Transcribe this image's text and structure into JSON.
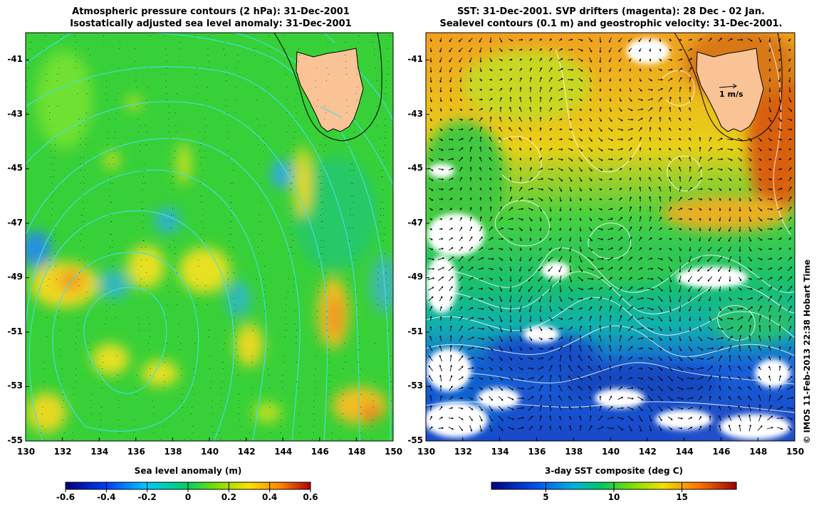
{
  "left_panel": {
    "title_line1": "Atmospheric pressure contours (2 hPa): 31-Dec-2001",
    "title_line2": "Isostatically adjusted sea level anomaly: 31-Dec-2001",
    "colorbar_title": "Sea level anomaly (m)",
    "colorbar_ticks": [
      "-0.6",
      "-0.4",
      "-0.2",
      "0",
      "0.2",
      "0.4",
      "0.6"
    ],
    "colorbar_range": [
      -0.6,
      0.6
    ]
  },
  "right_panel": {
    "title_line1": "SST: 31-Dec-2001. SVP drifters (magenta): 28 Dec - 02 Jan.",
    "title_line2": "Sealevel contours (0.1 m) and geostrophic velocity: 31-Dec-2001.",
    "colorbar_title": "3-day SST composite (deg C)",
    "colorbar_ticks": [
      "5",
      "10",
      "15"
    ],
    "colorbar_range": [
      1,
      19
    ],
    "velocity_scale_label": "1 m/s"
  },
  "axes": {
    "lon_ticks": [
      "130",
      "132",
      "134",
      "136",
      "138",
      "140",
      "142",
      "144",
      "146",
      "148",
      "150"
    ],
    "lat_ticks": [
      "-41",
      "-43",
      "-45",
      "-47",
      "-49",
      "-51",
      "-53",
      "-55"
    ]
  },
  "credit": "© IMOS 11-Feb-2013 22:38 Hobart Time",
  "colors": {
    "land": "#f9c396",
    "pressure_contours": "#40e0e8",
    "sea_level_contours": "#ffffff",
    "background": "#ffffff"
  }
}
